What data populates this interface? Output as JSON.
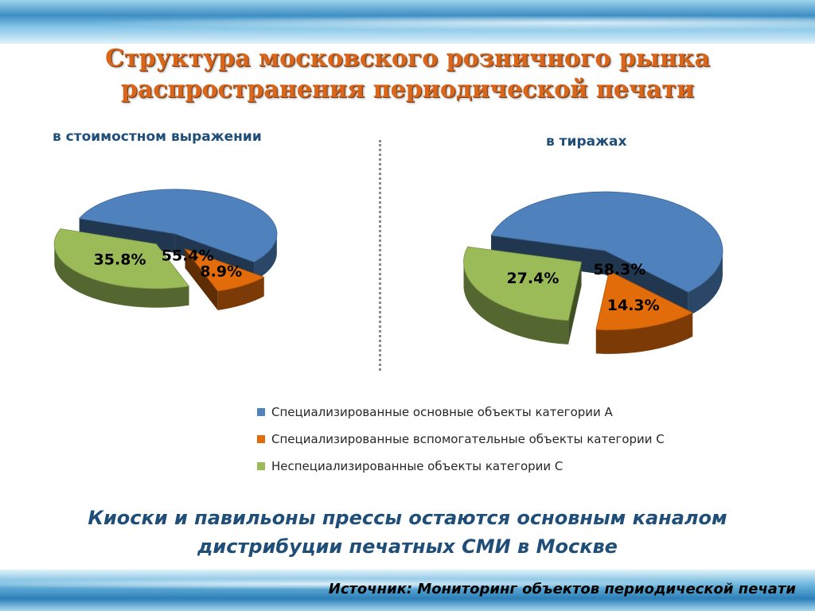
{
  "title_line1": "Структура московского розничного рынка",
  "title_line2": "распространения периодической печати",
  "conclusion_line1": "Киоски и павильоны прессы остаются основным каналом",
  "conclusion_line2": "дистрибуции печатных СМИ в Москве",
  "source": "Источник: Мониторинг объектов периодической печати",
  "colors": {
    "blue": "#4f81bd",
    "orange": "#e26b0a",
    "green": "#9bbb59",
    "title": "#d9661b",
    "text_dark_blue": "#1f4e79"
  },
  "legend": [
    {
      "label": "Специализированные основные объекты категории А",
      "color": "#4f81bd"
    },
    {
      "label": "Специализированные вспомогательные объекты категории С",
      "color": "#e26b0a"
    },
    {
      "label": "Неспециализированные объекты категории С",
      "color": "#9bbb59"
    }
  ],
  "chart_data": [
    {
      "type": "pie",
      "subtitle": "в стоимостном выражении",
      "categories": [
        "Специализированные основные объекты категории А",
        "Специализированные вспомогательные объекты категории С",
        "Неспециализированные объекты категории С"
      ],
      "values": [
        55.4,
        8.9,
        35.8
      ],
      "labels": [
        "55.4%",
        "8.9%",
        "35.8%"
      ],
      "colors": [
        "#4f81bd",
        "#e26b0a",
        "#9bbb59"
      ],
      "style": "3d-exploded"
    },
    {
      "type": "pie",
      "subtitle": "в тиражах",
      "categories": [
        "Специализированные основные объекты категории А",
        "Специализированные вспомогательные объекты категории С",
        "Неспециализированные объекты категории С"
      ],
      "values": [
        58.3,
        14.3,
        27.4
      ],
      "labels": [
        "58.3%",
        "14.3%",
        "27.4%"
      ],
      "colors": [
        "#4f81bd",
        "#e26b0a",
        "#9bbb59"
      ],
      "style": "3d-exploded"
    }
  ]
}
